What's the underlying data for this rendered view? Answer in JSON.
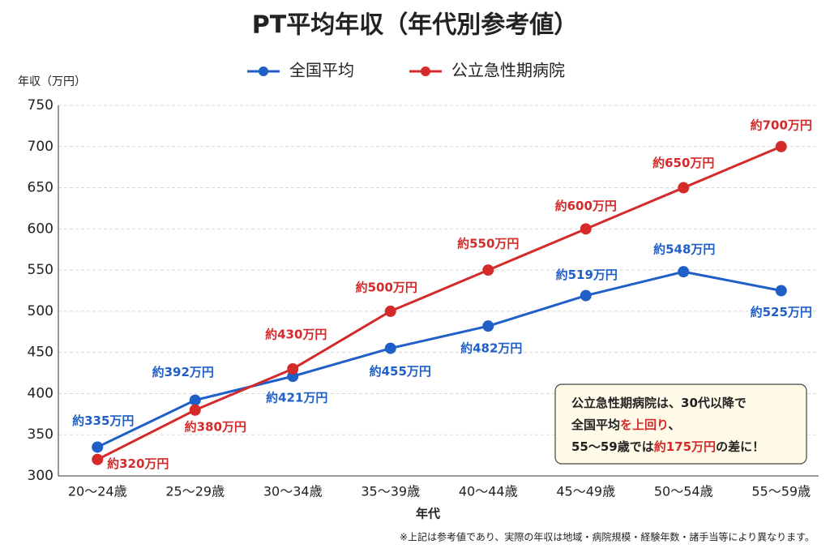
{
  "chart_data": {
    "type": "line",
    "title": "PT平均年収（年代別参考値）",
    "y_label": "年収（万円）",
    "x_label": "年代",
    "categories": [
      "20〜24歳",
      "25〜29歳",
      "30〜34歳",
      "35〜39歳",
      "40〜44歳",
      "45〜49歳",
      "50〜54歳",
      "55〜59歳"
    ],
    "series": [
      {
        "name": "全国平均",
        "color": "#1f5fc8",
        "values": [
          335,
          392,
          421,
          455,
          482,
          519,
          548,
          525
        ],
        "value_labels": [
          "約335万円",
          "約392万円",
          "約421万円",
          "約455万円",
          "約482万円",
          "約519万円",
          "約548万円",
          "約525万円"
        ]
      },
      {
        "name": "公立急性期病院",
        "color": "#d42a2a",
        "values": [
          320,
          380,
          430,
          500,
          550,
          600,
          650,
          700
        ],
        "value_labels": [
          "約320万円",
          "約380万円",
          "約430万円",
          "約500万円",
          "約550万円",
          "約600万円",
          "約650万円",
          "約700万円"
        ]
      }
    ],
    "ylim": [
      300,
      750
    ],
    "yticks": [
      300,
      350,
      400,
      450,
      500,
      550,
      600,
      650,
      700,
      750
    ],
    "grid": true,
    "legend": "top",
    "annotation": {
      "lines": [
        [
          "公立急性期病院は、30代以降で"
        ],
        [
          "全国平均",
          "を上回り",
          "、"
        ],
        [
          "55〜59歳では",
          "約175万円",
          "の差に！"
        ]
      ],
      "highlight_color": "#d42a2a"
    },
    "footnote": "※上記は参考値であり、実際の年収は地域・病院規模・経験年数・諸手当等により異なります。"
  }
}
